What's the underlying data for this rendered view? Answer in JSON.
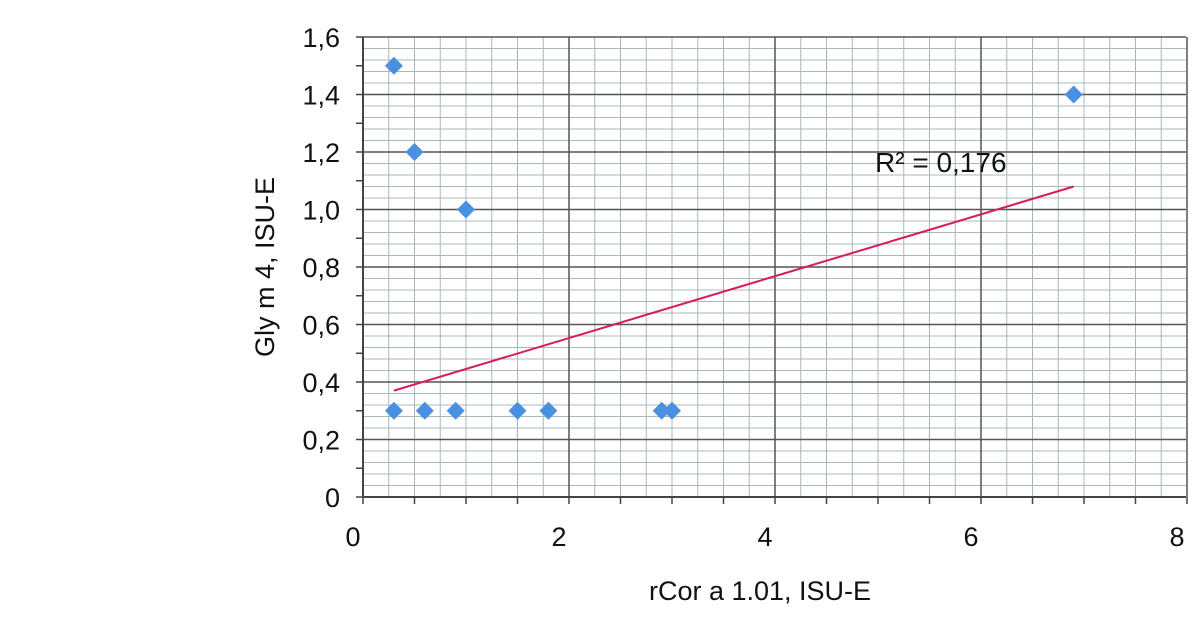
{
  "chart_data": {
    "type": "scatter",
    "xlabel": "rCor a 1.01, ISU-E",
    "ylabel": "Gly m 4, ISU-E",
    "xlim": [
      0,
      8
    ],
    "ylim": [
      0,
      1.6
    ],
    "xticks": [
      0,
      2,
      4,
      6,
      8
    ],
    "xtick_labels": [
      "0",
      "2",
      "4",
      "6",
      "8"
    ],
    "yticks": [
      0,
      0.2,
      0.4,
      0.6,
      0.8,
      1.0,
      1.2,
      1.4,
      1.6
    ],
    "ytick_labels": [
      "0",
      "0,2",
      "0,4",
      "0,6",
      "0,8",
      "1,0",
      "1,2",
      "1,4",
      "1,6"
    ],
    "grid": true,
    "points": [
      {
        "x": 0.3,
        "y": 1.5
      },
      {
        "x": 0.5,
        "y": 1.2
      },
      {
        "x": 1.0,
        "y": 1.0
      },
      {
        "x": 6.9,
        "y": 1.4
      },
      {
        "x": 0.3,
        "y": 0.3
      },
      {
        "x": 0.6,
        "y": 0.3
      },
      {
        "x": 0.9,
        "y": 0.3
      },
      {
        "x": 1.5,
        "y": 0.3
      },
      {
        "x": 1.8,
        "y": 0.3
      },
      {
        "x": 2.9,
        "y": 0.3
      },
      {
        "x": 3.0,
        "y": 0.3
      }
    ],
    "trendline": {
      "x_start": 0.3,
      "y_start": 0.37,
      "x_end": 6.9,
      "y_end": 1.08
    },
    "annotation_text": "R² = 0,176",
    "colors": {
      "marker": "#4a90e2",
      "trendline": "#d81b60",
      "major_grid": "#555555",
      "minor_grid": "#a8b8b8"
    }
  }
}
